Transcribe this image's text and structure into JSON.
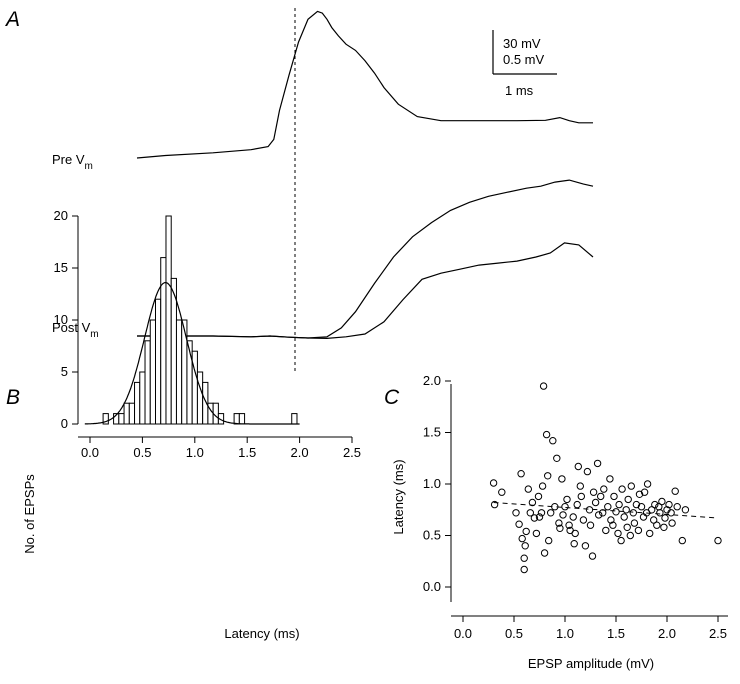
{
  "panel_a": {
    "letter": "A",
    "pre_label": "Pre V",
    "pre_sub": "m",
    "post_label": "Post V",
    "post_sub": "m",
    "scale_bar": {
      "v1": "30 mV",
      "v2": "0.5 mV",
      "t": "1 ms"
    }
  },
  "panel_b": {
    "letter": "B"
  },
  "panel_c": {
    "letter": "C"
  },
  "chart_data": [
    {
      "type": "bar",
      "panel": "B",
      "xlabel": "Latency (ms)",
      "ylabel": "No. of EPSPs",
      "xlim": [
        -0.1,
        2.5
      ],
      "ylim": [
        0,
        20
      ],
      "xticks": [
        "0.0",
        "0.5",
        "1.0",
        "1.5",
        "2.0",
        "2.5"
      ],
      "yticks": [
        "0",
        "5",
        "10",
        "15",
        "20"
      ],
      "bin_width": 0.05,
      "bins": [
        {
          "x": 0.15,
          "y": 1
        },
        {
          "x": 0.25,
          "y": 1
        },
        {
          "x": 0.3,
          "y": 1
        },
        {
          "x": 0.35,
          "y": 2
        },
        {
          "x": 0.4,
          "y": 2
        },
        {
          "x": 0.45,
          "y": 4
        },
        {
          "x": 0.5,
          "y": 5
        },
        {
          "x": 0.55,
          "y": 8
        },
        {
          "x": 0.6,
          "y": 10
        },
        {
          "x": 0.65,
          "y": 12
        },
        {
          "x": 0.7,
          "y": 16
        },
        {
          "x": 0.75,
          "y": 20
        },
        {
          "x": 0.8,
          "y": 14
        },
        {
          "x": 0.85,
          "y": 10
        },
        {
          "x": 0.9,
          "y": 10
        },
        {
          "x": 0.95,
          "y": 8
        },
        {
          "x": 1.0,
          "y": 7
        },
        {
          "x": 1.05,
          "y": 5
        },
        {
          "x": 1.1,
          "y": 4
        },
        {
          "x": 1.15,
          "y": 2
        },
        {
          "x": 1.2,
          "y": 2
        },
        {
          "x": 1.25,
          "y": 1
        },
        {
          "x": 1.4,
          "y": 1
        },
        {
          "x": 1.45,
          "y": 1
        },
        {
          "x": 1.95,
          "y": 1
        }
      ],
      "fit": {
        "type": "gaussian",
        "peak": 13.6,
        "mean": 0.72,
        "sd": 0.2
      }
    },
    {
      "type": "scatter",
      "panel": "C",
      "xlabel": "EPSP amplitude (mV)",
      "ylabel": "Latency (ms)",
      "xlim": [
        -0.1,
        2.55
      ],
      "ylim": [
        -0.05,
        2.1
      ],
      "xticks": [
        "0.0",
        "0.5",
        "1.0",
        "1.5",
        "2.0",
        "2.5"
      ],
      "yticks": [
        "0.0",
        "0.5",
        "1.0",
        "1.5",
        "2.0"
      ],
      "points": [
        [
          0.3,
          1.01
        ],
        [
          0.31,
          0.8
        ],
        [
          0.38,
          0.92
        ],
        [
          0.52,
          0.72
        ],
        [
          0.55,
          0.61
        ],
        [
          0.57,
          1.1
        ],
        [
          0.58,
          0.47
        ],
        [
          0.6,
          0.28
        ],
        [
          0.6,
          0.17
        ],
        [
          0.61,
          0.4
        ],
        [
          0.62,
          0.54
        ],
        [
          0.64,
          0.95
        ],
        [
          0.66,
          0.72
        ],
        [
          0.68,
          0.82
        ],
        [
          0.7,
          0.67
        ],
        [
          0.72,
          0.52
        ],
        [
          0.74,
          0.88
        ],
        [
          0.75,
          0.68
        ],
        [
          0.77,
          0.72
        ],
        [
          0.78,
          0.98
        ],
        [
          0.79,
          1.95
        ],
        [
          0.8,
          0.33
        ],
        [
          0.82,
          1.48
        ],
        [
          0.83,
          1.08
        ],
        [
          0.84,
          0.45
        ],
        [
          0.86,
          0.72
        ],
        [
          0.88,
          1.42
        ],
        [
          0.9,
          0.78
        ],
        [
          0.92,
          1.25
        ],
        [
          0.94,
          0.62
        ],
        [
          0.95,
          0.57
        ],
        [
          0.97,
          1.05
        ],
        [
          0.98,
          0.7
        ],
        [
          1.0,
          0.78
        ],
        [
          1.02,
          0.85
        ],
        [
          1.04,
          0.6
        ],
        [
          1.05,
          0.55
        ],
        [
          1.08,
          0.68
        ],
        [
          1.09,
          0.42
        ],
        [
          1.1,
          0.52
        ],
        [
          1.12,
          0.8
        ],
        [
          1.13,
          1.17
        ],
        [
          1.15,
          0.98
        ],
        [
          1.16,
          0.88
        ],
        [
          1.18,
          0.65
        ],
        [
          1.2,
          0.4
        ],
        [
          1.22,
          1.12
        ],
        [
          1.24,
          0.75
        ],
        [
          1.25,
          0.6
        ],
        [
          1.27,
          0.3
        ],
        [
          1.28,
          0.92
        ],
        [
          1.3,
          0.82
        ],
        [
          1.32,
          1.2
        ],
        [
          1.33,
          0.7
        ],
        [
          1.35,
          0.88
        ],
        [
          1.37,
          0.72
        ],
        [
          1.38,
          0.95
        ],
        [
          1.4,
          0.55
        ],
        [
          1.42,
          0.78
        ],
        [
          1.44,
          1.05
        ],
        [
          1.45,
          0.65
        ],
        [
          1.47,
          0.6
        ],
        [
          1.48,
          0.88
        ],
        [
          1.5,
          0.73
        ],
        [
          1.52,
          0.52
        ],
        [
          1.53,
          0.8
        ],
        [
          1.55,
          0.45
        ],
        [
          1.56,
          0.95
        ],
        [
          1.58,
          0.68
        ],
        [
          1.6,
          0.75
        ],
        [
          1.61,
          0.58
        ],
        [
          1.62,
          0.85
        ],
        [
          1.64,
          0.5
        ],
        [
          1.65,
          0.98
        ],
        [
          1.67,
          0.72
        ],
        [
          1.68,
          0.62
        ],
        [
          1.7,
          0.8
        ],
        [
          1.72,
          0.55
        ],
        [
          1.73,
          0.9
        ],
        [
          1.75,
          0.78
        ],
        [
          1.77,
          0.68
        ],
        [
          1.78,
          0.92
        ],
        [
          1.8,
          0.72
        ],
        [
          1.81,
          1.0
        ],
        [
          1.83,
          0.52
        ],
        [
          1.85,
          0.75
        ],
        [
          1.87,
          0.65
        ],
        [
          1.88,
          0.8
        ],
        [
          1.9,
          0.6
        ],
        [
          1.92,
          0.78
        ],
        [
          1.93,
          0.72
        ],
        [
          1.95,
          0.83
        ],
        [
          1.97,
          0.58
        ],
        [
          1.98,
          0.67
        ],
        [
          2.0,
          0.75
        ],
        [
          2.02,
          0.8
        ],
        [
          2.04,
          0.72
        ],
        [
          2.05,
          0.62
        ],
        [
          2.08,
          0.93
        ],
        [
          2.1,
          0.78
        ],
        [
          2.15,
          0.45
        ],
        [
          2.18,
          0.75
        ],
        [
          2.5,
          0.45
        ]
      ],
      "fit_line": {
        "style": "dashed",
        "x": [
          0.3,
          2.5
        ],
        "y": [
          0.82,
          0.67
        ]
      }
    }
  ],
  "traces": {
    "pre": {
      "t": [
        0.0,
        0.3,
        0.8,
        1.2,
        1.38,
        1.44,
        1.5,
        1.6,
        1.7,
        1.8,
        1.9,
        1.95,
        2.0,
        2.05,
        2.12,
        2.2,
        2.3,
        2.4,
        2.5,
        2.6,
        2.75,
        2.95,
        3.2,
        3.6,
        4.0,
        4.3,
        4.45,
        4.55,
        4.65,
        4.8
      ],
      "v": [
        0.0,
        0.12,
        0.25,
        0.4,
        0.55,
        0.9,
        2.3,
        4.0,
        5.6,
        6.7,
        7.08,
        7.0,
        6.7,
        6.3,
        5.9,
        5.5,
        5.2,
        4.7,
        4.1,
        3.4,
        2.6,
        2.0,
        1.8,
        1.8,
        1.8,
        1.82,
        1.95,
        1.8,
        1.7,
        1.7
      ]
    },
    "post1": {
      "t": [
        0.0,
        0.8,
        1.2,
        1.4,
        1.6,
        1.8,
        2.0,
        2.15,
        2.3,
        2.5,
        2.7,
        2.9,
        3.1,
        3.3,
        3.5,
        3.7,
        3.9,
        4.1,
        4.25,
        4.4,
        4.55,
        4.7,
        4.8
      ],
      "v": [
        0.0,
        0.0,
        -0.02,
        0.0,
        -0.03,
        -0.05,
        -0.02,
        0.2,
        0.6,
        1.3,
        1.95,
        2.45,
        2.8,
        3.1,
        3.3,
        3.45,
        3.55,
        3.65,
        3.7,
        3.8,
        3.85,
        3.75,
        3.7
      ]
    },
    "post2": {
      "t": [
        0.0,
        0.8,
        1.2,
        1.4,
        1.6,
        1.8,
        2.0,
        2.2,
        2.4,
        2.6,
        2.8,
        3.0,
        3.2,
        3.4,
        3.6,
        3.8,
        4.0,
        4.2,
        4.35,
        4.5,
        4.65,
        4.8
      ],
      "v": [
        0.0,
        0.0,
        -0.02,
        0.0,
        -0.03,
        -0.05,
        -0.06,
        -0.02,
        0.05,
        0.35,
        0.9,
        1.4,
        1.55,
        1.65,
        1.75,
        1.8,
        1.85,
        1.95,
        2.05,
        2.3,
        2.25,
        1.95
      ]
    }
  }
}
